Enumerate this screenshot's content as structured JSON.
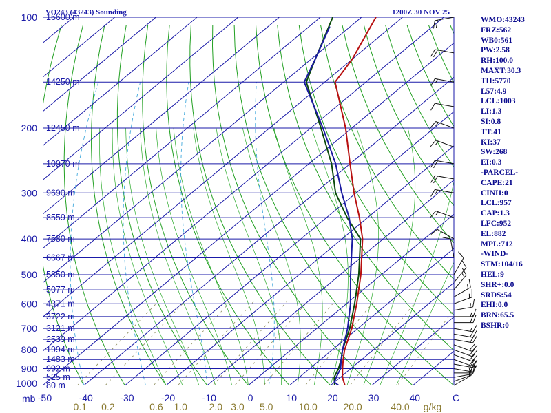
{
  "colors": {
    "isobar": "#1a1aa8",
    "isotherm": "#1a1aa8",
    "dry_adiabat": "#22a022",
    "moist_adiabat": "#2aaa2a",
    "mixing_ratio": "#8a8a5a",
    "parcel_dashed": "#44aadd",
    "temperature": "#b81010",
    "dewpoint": "#0a4a0a",
    "wetbulb": "#1a1aa0",
    "text": "#1a1aa8",
    "mixing_label": "#8a7a30",
    "wind": "#111111"
  },
  "chart_data": {
    "type": "skew-t log-p sounding",
    "title": "VO243 (43243) Sounding",
    "valid_time": "1200Z 30 NOV 25",
    "pressure_unit": "mb",
    "mixing_ratio_unit": "g/kg",
    "temperature_unit": "C",
    "pressure_range_mb": [
      1000,
      100
    ],
    "temperature_range_c": [
      -50,
      50
    ],
    "pressure_ticks": [
      {
        "p": 100,
        "label": "100"
      },
      {
        "p": 200,
        "label": "200"
      },
      {
        "p": 300,
        "label": "300"
      },
      {
        "p": 400,
        "label": "400"
      },
      {
        "p": 500,
        "label": "500"
      },
      {
        "p": 600,
        "label": "600"
      },
      {
        "p": 700,
        "label": "700"
      },
      {
        "p": 800,
        "label": "800"
      },
      {
        "p": 900,
        "label": "900"
      },
      {
        "p": 1000,
        "label": "1000"
      }
    ],
    "temperature_ticks": [
      {
        "t": -50,
        "label": "-50"
      },
      {
        "t": -40,
        "label": "-40"
      },
      {
        "t": -30,
        "label": "-30"
      },
      {
        "t": -20,
        "label": "-20"
      },
      {
        "t": -10,
        "label": "-10"
      },
      {
        "t": 0,
        "label": "0"
      },
      {
        "t": 10,
        "label": "10"
      },
      {
        "t": 20,
        "label": "20"
      },
      {
        "t": 30,
        "label": "30"
      },
      {
        "t": 40,
        "label": "40"
      },
      {
        "t": 50,
        "label": "C"
      }
    ],
    "mixing_ratio_ticks": [
      {
        "w": 0.1,
        "label": "0.1"
      },
      {
        "w": 0.2,
        "label": "0.2"
      },
      {
        "w": 0.6,
        "label": "0.6"
      },
      {
        "w": 1.0,
        "label": "1.0"
      },
      {
        "w": 2.0,
        "label": "2.0"
      },
      {
        "w": 3.0,
        "label": "3.0"
      },
      {
        "w": 5.0,
        "label": "5.0"
      },
      {
        "w": 10.0,
        "label": "10.0"
      },
      {
        "w": 20.0,
        "label": "20.0"
      },
      {
        "w": 40.0,
        "label": "40.0"
      }
    ],
    "mixing_ratio_lines": [
      0.1,
      0.2,
      0.6,
      1.0,
      2.0,
      3.0,
      5.0,
      10.0,
      20.0,
      40.0
    ],
    "height_labels": [
      {
        "p": 100,
        "label": "16600 m"
      },
      {
        "p": 150,
        "label": "14250 m"
      },
      {
        "p": 200,
        "label": "12450 m"
      },
      {
        "p": 250,
        "label": "10970 m"
      },
      {
        "p": 300,
        "label": "9690 m"
      },
      {
        "p": 350,
        "label": "8559 m"
      },
      {
        "p": 400,
        "label": "7580 m"
      },
      {
        "p": 450,
        "label": "6667 m"
      },
      {
        "p": 500,
        "label": "5850 m"
      },
      {
        "p": 550,
        "label": "5077 m"
      },
      {
        "p": 600,
        "label": "4371 m"
      },
      {
        "p": 650,
        "label": "3722 m"
      },
      {
        "p": 700,
        "label": "3121 m"
      },
      {
        "p": 750,
        "label": "2539 m"
      },
      {
        "p": 800,
        "label": "1994 m"
      },
      {
        "p": 850,
        "label": "1483 m"
      },
      {
        "p": 900,
        "label": "992 m"
      },
      {
        "p": 950,
        "label": "525 m"
      },
      {
        "p": 1000,
        "label": "80 m"
      }
    ],
    "temperature_profile": [
      {
        "p": 1000,
        "t": 23.5
      },
      {
        "p": 950,
        "t": 20.5
      },
      {
        "p": 900,
        "t": 18.0
      },
      {
        "p": 850,
        "t": 15.5
      },
      {
        "p": 800,
        "t": 13.0
      },
      {
        "p": 700,
        "t": 8.5
      },
      {
        "p": 600,
        "t": 2.5
      },
      {
        "p": 500,
        "t": -5.0
      },
      {
        "p": 400,
        "t": -15.0
      },
      {
        "p": 350,
        "t": -22.0
      },
      {
        "p": 300,
        "t": -30.5
      },
      {
        "p": 250,
        "t": -40.0
      },
      {
        "p": 200,
        "t": -51.5
      },
      {
        "p": 150,
        "t": -67.5
      },
      {
        "p": 130,
        "t": -70.0
      },
      {
        "p": 100,
        "t": -76.5
      }
    ],
    "dewpoint_profile": [
      {
        "p": 1000,
        "t": 21.0
      },
      {
        "p": 950,
        "t": 18.5
      },
      {
        "p": 900,
        "t": 17.0
      },
      {
        "p": 850,
        "t": 15.0
      },
      {
        "p": 800,
        "t": 12.5
      },
      {
        "p": 700,
        "t": 8.0
      },
      {
        "p": 600,
        "t": 2.0
      },
      {
        "p": 500,
        "t": -5.5
      },
      {
        "p": 400,
        "t": -15.5
      },
      {
        "p": 350,
        "t": -25.0
      },
      {
        "p": 300,
        "t": -35.0
      },
      {
        "p": 250,
        "t": -44.5
      },
      {
        "p": 200,
        "t": -57.5
      },
      {
        "p": 150,
        "t": -74.5
      },
      {
        "p": 130,
        "t": -79.0
      },
      {
        "p": 100,
        "t": -87.0
      }
    ],
    "wetbulb_profile": [
      {
        "p": 1000,
        "t": 22.0
      },
      {
        "p": 980,
        "t": 20.0
      },
      {
        "p": 950,
        "t": 19.0
      },
      {
        "p": 900,
        "t": 17.5
      },
      {
        "p": 850,
        "t": 15.0
      },
      {
        "p": 800,
        "t": 12.5
      },
      {
        "p": 700,
        "t": 7.5
      },
      {
        "p": 600,
        "t": 1.0
      },
      {
        "p": 500,
        "t": -7.5
      },
      {
        "p": 400,
        "t": -17.5
      },
      {
        "p": 350,
        "t": -24.5
      },
      {
        "p": 300,
        "t": -33.5
      },
      {
        "p": 250,
        "t": -43.5
      },
      {
        "p": 200,
        "t": -57.0
      },
      {
        "p": 150,
        "t": -75.0
      },
      {
        "p": 130,
        "t": -79.0
      },
      {
        "p": 106,
        "t": -85.0
      }
    ],
    "wind_profile": [
      {
        "p": 1000,
        "dir": 60,
        "spd": 10
      },
      {
        "p": 975,
        "dir": 70,
        "spd": 15
      },
      {
        "p": 950,
        "dir": 80,
        "spd": 15
      },
      {
        "p": 925,
        "dir": 90,
        "spd": 15
      },
      {
        "p": 900,
        "dir": 100,
        "spd": 20
      },
      {
        "p": 875,
        "dir": 100,
        "spd": 20
      },
      {
        "p": 850,
        "dir": 110,
        "spd": 20
      },
      {
        "p": 825,
        "dir": 110,
        "spd": 20
      },
      {
        "p": 800,
        "dir": 110,
        "spd": 20
      },
      {
        "p": 775,
        "dir": 110,
        "spd": 20
      },
      {
        "p": 750,
        "dir": 100,
        "spd": 20
      },
      {
        "p": 725,
        "dir": 100,
        "spd": 20
      },
      {
        "p": 700,
        "dir": 100,
        "spd": 15
      },
      {
        "p": 675,
        "dir": 90,
        "spd": 20
      },
      {
        "p": 650,
        "dir": 90,
        "spd": 15
      },
      {
        "p": 625,
        "dir": 80,
        "spd": 15
      },
      {
        "p": 600,
        "dir": 70,
        "spd": 15
      },
      {
        "p": 575,
        "dir": 60,
        "spd": 15
      },
      {
        "p": 550,
        "dir": 40,
        "spd": 15
      },
      {
        "p": 525,
        "dir": 40,
        "spd": 10
      },
      {
        "p": 500,
        "dir": 30,
        "spd": 10
      },
      {
        "p": 450,
        "dir": 350,
        "spd": 10
      },
      {
        "p": 400,
        "dir": 300,
        "spd": 10
      },
      {
        "p": 350,
        "dir": 290,
        "spd": 15
      },
      {
        "p": 300,
        "dir": 280,
        "spd": 15
      },
      {
        "p": 275,
        "dir": 280,
        "spd": 20
      },
      {
        "p": 250,
        "dir": 280,
        "spd": 20
      },
      {
        "p": 225,
        "dir": 290,
        "spd": 15
      },
      {
        "p": 200,
        "dir": 290,
        "spd": 15
      },
      {
        "p": 175,
        "dir": 280,
        "spd": 10
      },
      {
        "p": 150,
        "dir": 280,
        "spd": 15
      },
      {
        "p": 125,
        "dir": 280,
        "spd": 20
      },
      {
        "p": 100,
        "dir": 260,
        "spd": 20
      }
    ]
  },
  "stats": [
    "WMO:43243",
    "FRZ:562",
    "WB0:561",
    "PW:2.58",
    "RH:100.0",
    "MAXT:30.3",
    "TH:5770",
    "L57:4.9",
    "LCL:1003",
    "LI:1.3",
    "SI:0.8",
    "TT:41",
    "KI:37",
    "SW:268",
    "EI:0.3",
    "-PARCEL-",
    "CAPE:21",
    "CINH:0",
    "LCL:957",
    "CAP:1.3",
    "LFC:952",
    "EL:882",
    "MPL:712",
    "-WIND-",
    "STM:104/16",
    "HEL:9",
    "SHR+:0.0",
    "SRDS:54",
    "EHI:0.0",
    "BRN:65.5",
    "BSHR:0"
  ]
}
